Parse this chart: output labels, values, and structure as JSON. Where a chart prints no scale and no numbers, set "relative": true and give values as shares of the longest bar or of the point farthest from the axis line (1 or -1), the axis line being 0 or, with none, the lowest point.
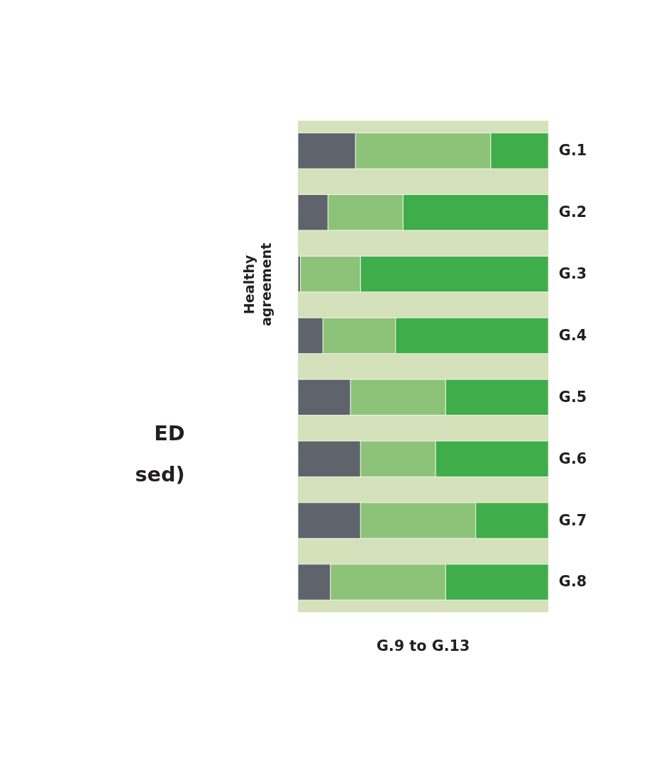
{
  "chart_data": {
    "type": "bar",
    "orientation": "horizontal",
    "stacked": true,
    "relative": true,
    "categories": [
      "G.1",
      "G.2",
      "G.3",
      "G.4",
      "G.5",
      "G.6",
      "G.7",
      "G.8"
    ],
    "series": [
      {
        "color": "#5f636b",
        "values": [
          0.23,
          0.12,
          0.01,
          0.1,
          0.21,
          0.25,
          0.25,
          0.13
        ]
      },
      {
        "color": "#8dc378",
        "values": [
          0.54,
          0.3,
          0.24,
          0.29,
          0.38,
          0.3,
          0.46,
          0.46
        ]
      },
      {
        "color": "#3fad49",
        "values": [
          0.23,
          0.58,
          0.75,
          0.61,
          0.41,
          0.45,
          0.29,
          0.41
        ]
      }
    ],
    "annotations": [
      "Healthy agreement",
      "G.9 to G.13",
      "ED",
      "sed)"
    ]
  }
}
